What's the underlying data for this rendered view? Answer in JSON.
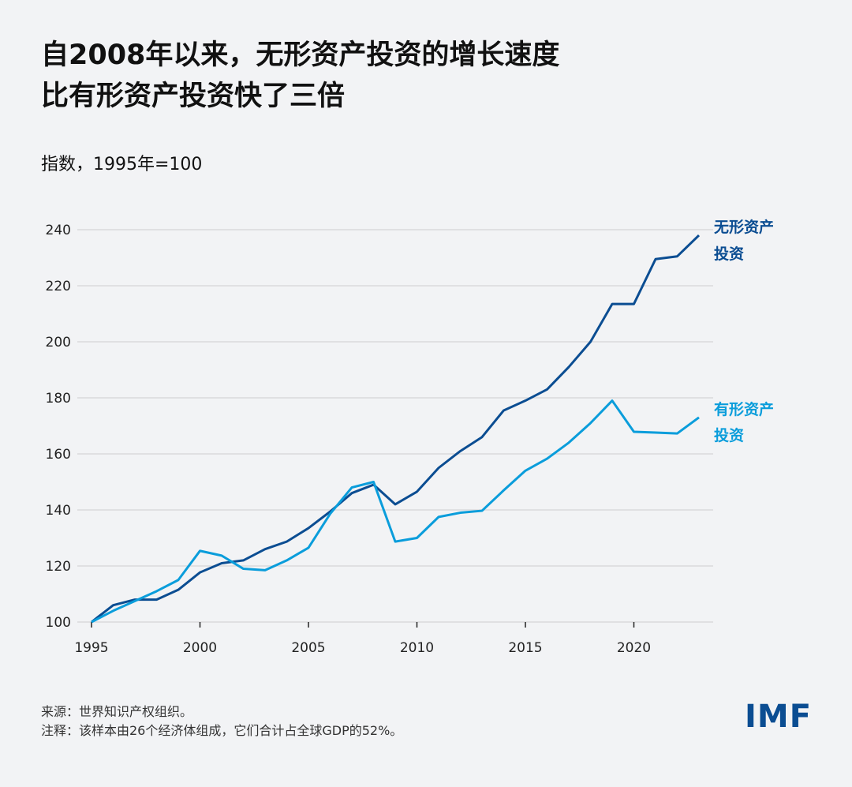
{
  "title": [
    "自2008年以来，无形资产投资的增长速度",
    "比有形资产投资快了三倍"
  ],
  "subtitle": "指数，1995年=100",
  "footer": {
    "source": "来源：世界知识产权组织。",
    "note": "注释：该样本由26个经济体组成，它们合计占全球GDP的52%。"
  },
  "logo": "IMF",
  "colors": {
    "intangible": "#0b4d92",
    "tangible": "#0a9ddb",
    "grid": "#d9dadc"
  },
  "chart_data": {
    "type": "line",
    "title": "自2008年以来，无形资产投资的增长速度比有形资产投资快了三倍",
    "ylabel": "指数，1995年=100",
    "xlim": [
      1995,
      2023
    ],
    "ylim": [
      100,
      240
    ],
    "grid": true,
    "xticks": [
      "1995",
      "2000",
      "2005",
      "2010",
      "2015",
      "2020"
    ],
    "yticks": [
      "100",
      "120",
      "140",
      "160",
      "180",
      "200",
      "220",
      "240"
    ],
    "x": [
      1995,
      1996,
      1997,
      1998,
      1999,
      2000,
      2001,
      2002,
      2003,
      2004,
      2005,
      2006,
      2007,
      2008,
      2009,
      2010,
      2011,
      2012,
      2013,
      2014,
      2015,
      2016,
      2017,
      2018,
      2019,
      2020,
      2021,
      2022,
      2023
    ],
    "series": [
      {
        "name": "无形资产投资",
        "label_lines": [
          "无形资产",
          "投资"
        ],
        "color": "#0b4d92",
        "values": [
          100,
          106,
          108,
          108,
          111.5,
          117.7,
          121,
          122,
          126,
          128.7,
          133.5,
          139.4,
          146,
          149,
          142,
          146.5,
          155,
          161,
          166,
          175.5,
          179,
          183,
          191,
          200,
          213.5,
          213.5,
          229.5,
          230.5,
          238
        ]
      },
      {
        "name": "有形资产投资",
        "label_lines": [
          "有形资产",
          "投资"
        ],
        "color": "#0a9ddb",
        "values": [
          100,
          104,
          107.5,
          111,
          115,
          125.4,
          123.7,
          119,
          118.5,
          122,
          126.5,
          138.6,
          148,
          150,
          128.7,
          130,
          137.5,
          139,
          139.7,
          147,
          154,
          158.3,
          164,
          171,
          179,
          167.9,
          167.6,
          167.3,
          173
        ]
      }
    ]
  }
}
